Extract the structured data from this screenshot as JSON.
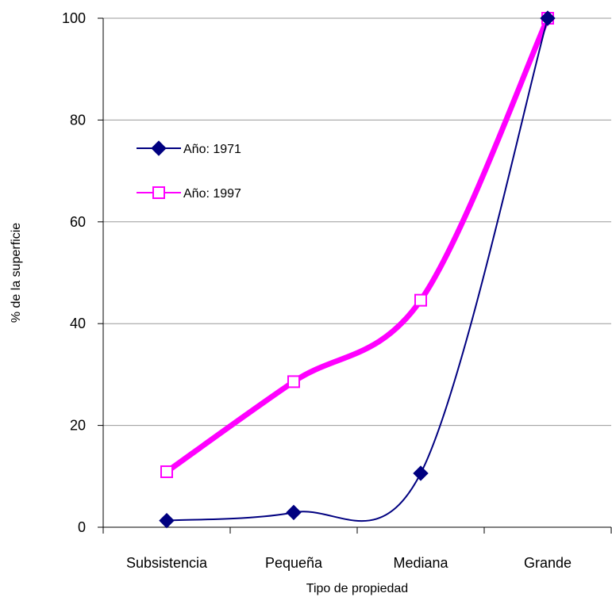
{
  "chart_data": {
    "type": "line",
    "title": "",
    "xlabel": "Tipo de propiedad",
    "ylabel": "% de la superficie",
    "categories": [
      "Subsistencia",
      "Pequeña",
      "Mediana",
      "Grande"
    ],
    "ylim": [
      0,
      100
    ],
    "yticks": [
      0,
      20,
      40,
      60,
      80,
      100
    ],
    "grid": true,
    "legend_position": "upper-left",
    "smoothed": true,
    "series": [
      {
        "name": "Año: 1971",
        "values": [
          1.3,
          2.9,
          10.6,
          100
        ],
        "color": "#000080",
        "marker": "filled-diamond",
        "line_weight": "thin"
      },
      {
        "name": "Año: 1997",
        "values": [
          10.9,
          28.6,
          44.6,
          100
        ],
        "color": "#FF00FF",
        "marker": "hollow-square",
        "line_weight": "thick"
      }
    ]
  }
}
